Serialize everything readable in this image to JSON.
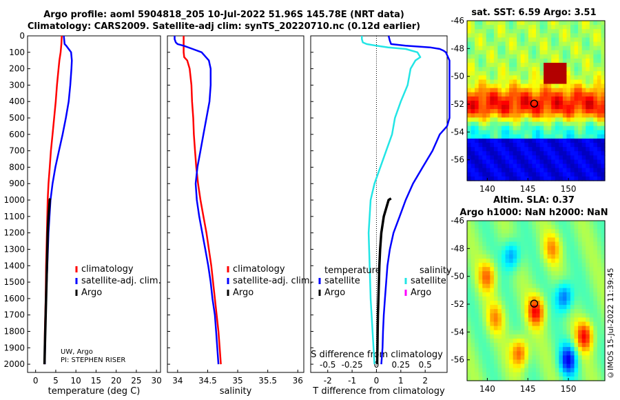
{
  "title_line1": "Argo profile: aoml 5904818_205 10-Jul-2022 51.96S 145.78E (NRT data)",
  "title_line2": "Climatology: CARS2009. Satellite-adj clim: synTS_20220710.nc (0.12d earlier)",
  "credit": "UW, Argo",
  "pi": "PI: STEPHEN RISER",
  "timestamp": "©IMOS 15-Jul-2022 11:39:45",
  "colors": {
    "climatology": "#ff0000",
    "satellite": "#0000ff",
    "argo": "#000000",
    "sat_salinity": "#22e5e5",
    "argo_salinity": "#ff00ff"
  },
  "chart_data": [
    {
      "type": "line",
      "xlabel": "temperature (deg C)",
      "ylabel": "",
      "xlim": [
        -2,
        31
      ],
      "ylim": [
        2050,
        0
      ],
      "xticks": [
        0,
        5,
        10,
        15,
        20,
        25,
        30
      ],
      "yticks": [
        0,
        100,
        200,
        300,
        400,
        500,
        600,
        700,
        800,
        900,
        1000,
        1100,
        1200,
        1300,
        1400,
        1500,
        1600,
        1700,
        1800,
        1900,
        2000
      ],
      "legend_position": "center-right",
      "legend": [
        "climatology",
        "satellite-adj. clim.",
        "Argo"
      ],
      "series": [
        {
          "name": "climatology",
          "y": [
            0,
            50,
            100,
            150,
            200,
            300,
            400,
            500,
            600,
            700,
            800,
            900,
            1000,
            1200,
            1400,
            1600,
            1800,
            2000
          ],
          "x": [
            6.5,
            6.4,
            6.2,
            5.9,
            5.7,
            5.3,
            5.0,
            4.6,
            4.2,
            3.8,
            3.5,
            3.2,
            3.0,
            2.8,
            2.6,
            2.5,
            2.3,
            2.2
          ]
        },
        {
          "name": "satellite-adj. clim.",
          "y": [
            0,
            50,
            60,
            100,
            150,
            200,
            300,
            400,
            500,
            600,
            700,
            800,
            900,
            1000,
            1200,
            1400,
            1600,
            1800,
            2000
          ],
          "x": [
            7.0,
            7.2,
            7.6,
            8.8,
            9.0,
            8.9,
            8.6,
            8.2,
            7.5,
            6.7,
            5.8,
            4.9,
            4.2,
            3.7,
            3.2,
            2.9,
            2.6,
            2.4,
            2.3
          ]
        },
        {
          "name": "Argo",
          "y": [
            990,
            1000,
            1100,
            1200,
            1300,
            1400,
            1500,
            1600,
            1700,
            1800,
            1900,
            2000
          ],
          "x": [
            3.6,
            3.5,
            3.2,
            3.0,
            2.9,
            2.8,
            2.7,
            2.6,
            2.5,
            2.4,
            2.3,
            2.2
          ]
        }
      ]
    },
    {
      "type": "line",
      "xlabel": "salinity",
      "xlim": [
        33.83,
        36.1
      ],
      "ylim": [
        2050,
        0
      ],
      "xticks": [
        34,
        34.5,
        35,
        35.5,
        36
      ],
      "legend_position": "center-right",
      "legend": [
        "climatology",
        "satellite-adj. clim.",
        "Argo"
      ],
      "series": [
        {
          "name": "climatology",
          "y": [
            0,
            50,
            100,
            130,
            150,
            200,
            300,
            400,
            500,
            600,
            700,
            800,
            900,
            1000,
            1100,
            1200,
            1300,
            1400,
            1500,
            1600,
            1700,
            1800,
            1900,
            2000
          ],
          "x": [
            34.1,
            34.1,
            34.1,
            34.11,
            34.16,
            34.2,
            34.23,
            34.24,
            34.26,
            34.27,
            34.29,
            34.31,
            34.34,
            34.38,
            34.43,
            34.48,
            34.52,
            34.56,
            34.59,
            34.62,
            34.65,
            34.68,
            34.7,
            34.72
          ]
        },
        {
          "name": "satellite-adj. clim.",
          "y": [
            0,
            20,
            40,
            50,
            60,
            80,
            100,
            150,
            200,
            300,
            400,
            500,
            600,
            700,
            800,
            900,
            1000,
            1100,
            1200,
            1300,
            1400,
            1500,
            1600,
            1700,
            1800,
            1900,
            2000
          ],
          "x": [
            33.95,
            33.95,
            33.97,
            34.0,
            34.1,
            34.25,
            34.4,
            34.52,
            34.55,
            34.55,
            34.53,
            34.48,
            34.43,
            34.38,
            34.33,
            34.3,
            34.32,
            34.36,
            34.41,
            34.46,
            34.51,
            34.55,
            34.58,
            34.62,
            34.64,
            34.66,
            34.68
          ]
        }
      ]
    },
    {
      "type": "line",
      "xlabel": "T difference from climatology",
      "x2label": "S difference from climatology",
      "xlim": [
        -2.7,
        2.9
      ],
      "x2lim": [
        -0.675,
        0.725
      ],
      "ylim": [
        2050,
        0
      ],
      "xticks": [
        -2,
        -1,
        0,
        1,
        2
      ],
      "x2ticks": [
        -0.5,
        -0.25,
        0,
        0.25,
        0.5
      ],
      "x2ticklabels": [
        "-0.5",
        "-0.25",
        "0",
        "0.25",
        "0.5"
      ],
      "legend_position": "center",
      "legend_temperature_title": "temperature",
      "legend_salinity_title": "salinity",
      "legend_temperature": [
        "satellite",
        "Argo"
      ],
      "legend_salinity": [
        "satellite",
        "Argo"
      ],
      "series": [
        {
          "name": "temperature satellite",
          "axis": "T",
          "y": [
            0,
            30,
            50,
            60,
            70,
            80,
            90,
            100,
            150,
            200,
            300,
            400,
            500,
            550,
            600,
            700,
            800,
            900,
            1000,
            1100,
            1200,
            1300,
            1400,
            1500,
            1600,
            1700,
            1800,
            1900,
            2000
          ],
          "x": [
            0.5,
            0.55,
            0.6,
            1.2,
            2.2,
            2.6,
            2.75,
            2.85,
            3.0,
            3.0,
            3.0,
            3.0,
            3.0,
            2.9,
            2.6,
            2.3,
            1.9,
            1.5,
            1.2,
            0.95,
            0.7,
            0.55,
            0.45,
            0.4,
            0.35,
            0.3,
            0.27,
            0.25,
            0.2
          ]
        },
        {
          "name": "temperature Argo",
          "axis": "T",
          "y": [
            990,
            1000,
            1100,
            1200,
            1300,
            1400,
            1500,
            1600,
            1700,
            1800,
            1900,
            2000
          ],
          "x": [
            0.6,
            0.5,
            0.3,
            0.2,
            0.15,
            0.12,
            0.1,
            0.08,
            0.06,
            0.05,
            0.04,
            0.03
          ]
        },
        {
          "name": "salinity satellite",
          "axis": "S",
          "y": [
            0,
            20,
            40,
            50,
            60,
            70,
            80,
            100,
            130,
            150,
            200,
            300,
            400,
            500,
            600,
            700,
            800,
            900,
            1000,
            1200,
            1400,
            1600,
            1800,
            2000
          ],
          "x": [
            -0.15,
            -0.15,
            -0.14,
            -0.1,
            0.0,
            0.12,
            0.3,
            0.42,
            0.45,
            0.4,
            0.35,
            0.32,
            0.25,
            0.19,
            0.16,
            0.1,
            0.04,
            -0.02,
            -0.06,
            -0.08,
            -0.07,
            -0.06,
            -0.04,
            -0.02
          ]
        }
      ]
    },
    {
      "type": "heatmap",
      "title": "sat. SST: 6.59 Argo: 3.51",
      "xlim": [
        137.5,
        154.5
      ],
      "ylim": [
        -57.5,
        -46
      ],
      "xticks": [
        140,
        145,
        150
      ],
      "yticks": [
        -46,
        -48,
        -50,
        -52,
        -54,
        -56
      ],
      "yticklabels": [
        "-46",
        "-48",
        "-50",
        "-52",
        "-54",
        "-56"
      ],
      "profile_location": {
        "lon": 145.78,
        "lat": -51.96
      }
    },
    {
      "type": "heatmap",
      "title": "Altim. SLA: 0.37",
      "subtitle": "Argo h1000: NaN h2000: NaN",
      "xlim": [
        137.5,
        154.5
      ],
      "ylim": [
        -57.5,
        -46
      ],
      "xticks": [
        140,
        145,
        150
      ],
      "yticks": [
        -46,
        -48,
        -50,
        -52,
        -54,
        -56
      ],
      "yticklabels": [
        "-46",
        "-48",
        "-50",
        "-52",
        "-54",
        "-56"
      ],
      "profile_location": {
        "lon": 145.78,
        "lat": -51.96
      }
    }
  ]
}
